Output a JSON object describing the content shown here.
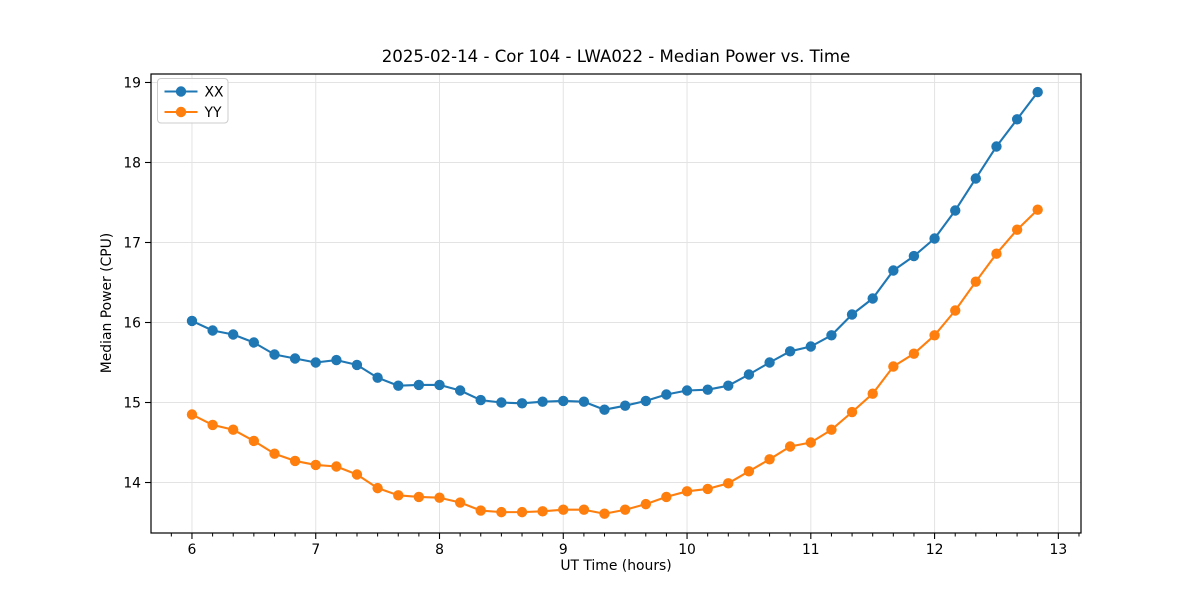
{
  "chart_data": {
    "type": "line",
    "title": "2025-02-14 - Cor 104 - LWA022 - Median Power vs. Time",
    "xlabel": "UT Time (hours)",
    "ylabel": "Median Power (CPU)",
    "x": [
      6.0,
      6.167,
      6.333,
      6.5,
      6.667,
      6.833,
      7.0,
      7.167,
      7.333,
      7.5,
      7.667,
      7.833,
      8.0,
      8.167,
      8.333,
      8.5,
      8.667,
      8.833,
      9.0,
      9.167,
      9.333,
      9.5,
      9.667,
      9.833,
      10.0,
      10.167,
      10.333,
      10.5,
      10.667,
      10.833,
      11.0,
      11.167,
      11.333,
      11.5,
      11.667,
      11.833,
      12.0,
      12.167,
      12.333,
      12.5,
      12.667,
      12.833
    ],
    "series": [
      {
        "name": "XX",
        "color": "#1f77b4",
        "marker": "circle",
        "values": [
          16.02,
          15.9,
          15.85,
          15.75,
          15.6,
          15.55,
          15.5,
          15.53,
          15.47,
          15.31,
          15.21,
          15.22,
          15.22,
          15.15,
          15.03,
          15.0,
          14.99,
          15.01,
          15.02,
          15.01,
          14.91,
          14.96,
          15.02,
          15.1,
          15.15,
          15.16,
          15.21,
          15.35,
          15.5,
          15.64,
          15.7,
          15.84,
          16.1,
          16.3,
          16.65,
          16.83,
          17.05,
          17.4,
          17.8,
          18.2,
          18.54,
          18.88
        ]
      },
      {
        "name": "YY",
        "color": "#ff7f0e",
        "marker": "circle",
        "values": [
          14.85,
          14.72,
          14.66,
          14.52,
          14.36,
          14.27,
          14.22,
          14.2,
          14.1,
          13.93,
          13.84,
          13.82,
          13.81,
          13.75,
          13.65,
          13.63,
          13.63,
          13.64,
          13.66,
          13.66,
          13.61,
          13.66,
          13.73,
          13.82,
          13.89,
          13.92,
          13.99,
          14.14,
          14.29,
          14.45,
          14.5,
          14.66,
          14.88,
          15.11,
          15.45,
          15.61,
          15.84,
          16.15,
          16.51,
          16.86,
          17.16,
          17.41
        ]
      }
    ],
    "xlim": [
      5.669,
      13.183
    ],
    "ylim": [
      13.369,
      19.106
    ],
    "xticks": [
      6,
      7,
      8,
      9,
      10,
      11,
      12,
      13
    ],
    "yticks": [
      14,
      15,
      16,
      17,
      18,
      19
    ],
    "x_minor_step": 0.1667,
    "grid": true,
    "grid_color": "#e3e3e3",
    "spine_color": "#000000",
    "legend_position": "upper left",
    "legend_labels": [
      "XX",
      "YY"
    ],
    "background": "#ffffff"
  }
}
